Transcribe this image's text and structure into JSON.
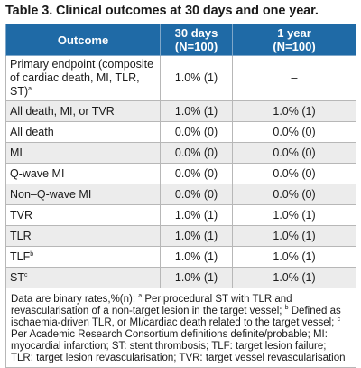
{
  "caption": "Table 3. Clinical outcomes at 30 days and one year.",
  "headers": {
    "outcome": "Outcome",
    "col30_line1": "30 days",
    "col30_line2": "(N=100)",
    "col1y_line1": "1 year",
    "col1y_line2": "(N=100)"
  },
  "rows": [
    {
      "label": "Primary endpoint (composite of cardiac death, MI, TLR, ST)",
      "sup": "a",
      "d30": "1.0% (1)",
      "y1": "–"
    },
    {
      "label": "All death, MI, or TVR",
      "sup": "",
      "d30": "1.0% (1)",
      "y1": "1.0% (1)"
    },
    {
      "label": "All death",
      "sup": "",
      "d30": "0.0% (0)",
      "y1": "0.0% (0)"
    },
    {
      "label": "MI",
      "sup": "",
      "d30": "0.0% (0)",
      "y1": "0.0% (0)"
    },
    {
      "label": "Q-wave MI",
      "sup": "",
      "d30": "0.0% (0)",
      "y1": "0.0% (0)"
    },
    {
      "label": "Non–Q-wave MI",
      "sup": "",
      "d30": "0.0% (0)",
      "y1": "0.0% (0)"
    },
    {
      "label": "TVR",
      "sup": "",
      "d30": "1.0% (1)",
      "y1": "1.0% (1)"
    },
    {
      "label": "TLR",
      "sup": "",
      "d30": "1.0% (1)",
      "y1": "1.0% (1)"
    },
    {
      "label": "TLF",
      "sup": "b",
      "d30": "1.0% (1)",
      "y1": "1.0% (1)"
    },
    {
      "label": "ST",
      "sup": "c",
      "d30": "1.0% (1)",
      "y1": "1.0% (1)"
    }
  ],
  "footnote": {
    "part1": "Data are binary rates,%(n); ",
    "sup_a": "a",
    "part2": " Periprocedural ST with TLR and revascularisation of a non-target lesion in the target vessel; ",
    "sup_b": "b",
    "part3": " Defined as ischaemia-driven TLR, or MI/cardiac death related to the target vessel; ",
    "sup_c": "c",
    "part4": " Per Academic Research Consortium definitions definite/probable; MI: myocardial infarction; ST: stent thrombosis; TLF: target lesion failure; TLR: target lesion revascularisation; TVR: target vessel revascularisation"
  },
  "colors": {
    "header_bg": "#1f6aa6",
    "header_text": "#ffffff",
    "alt_row_bg": "#ececec",
    "border": "#b7b7b7"
  }
}
